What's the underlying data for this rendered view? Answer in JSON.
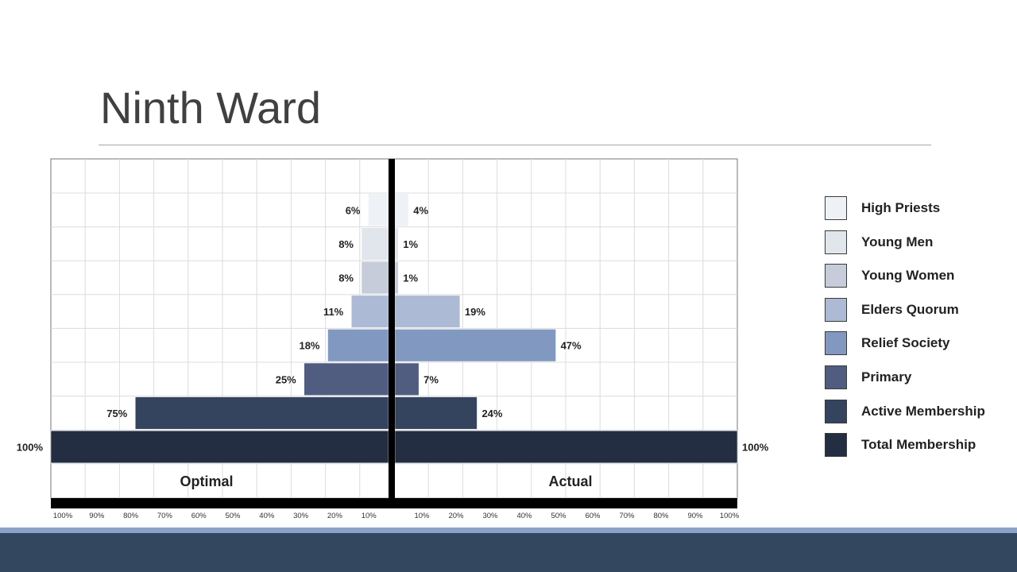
{
  "slide": {
    "title": "Ninth Ward"
  },
  "chart_data": {
    "type": "bar",
    "orientation": "horizontal-butterfly",
    "categories": [
      "High Priests",
      "Young Men",
      "Young Women",
      "Elders Quorum",
      "Relief Society",
      "Primary",
      "Active Membership",
      "Total Membership"
    ],
    "series": [
      {
        "name": "Optimal",
        "values": [
          6,
          8,
          8,
          11,
          18,
          25,
          75,
          100
        ],
        "labels": [
          "6%",
          "8%",
          "8%",
          "11%",
          "18%",
          "25%",
          "75%",
          "100%"
        ]
      },
      {
        "name": "Actual",
        "values": [
          4,
          1,
          1,
          19,
          47,
          7,
          24,
          100
        ],
        "labels": [
          "4%",
          "1%",
          "1%",
          "19%",
          "47%",
          "7%",
          "24%",
          "100%"
        ]
      }
    ],
    "colors": [
      "#eef1f5",
      "#e1e5ec",
      "#c6ccda",
      "#acbad5",
      "#8199c0",
      "#505d80",
      "#34445f",
      "#232e42"
    ],
    "xlim": [
      0,
      100
    ],
    "left_ticks": [
      "100%",
      "90%",
      "80%",
      "70%",
      "60%",
      "50%",
      "40%",
      "30%",
      "20%",
      "10%"
    ],
    "right_ticks": [
      "10%",
      "20%",
      "30%",
      "40%",
      "50%",
      "60%",
      "70%",
      "80%",
      "90%",
      "100%"
    ],
    "grid": true,
    "legend_position": "right"
  }
}
